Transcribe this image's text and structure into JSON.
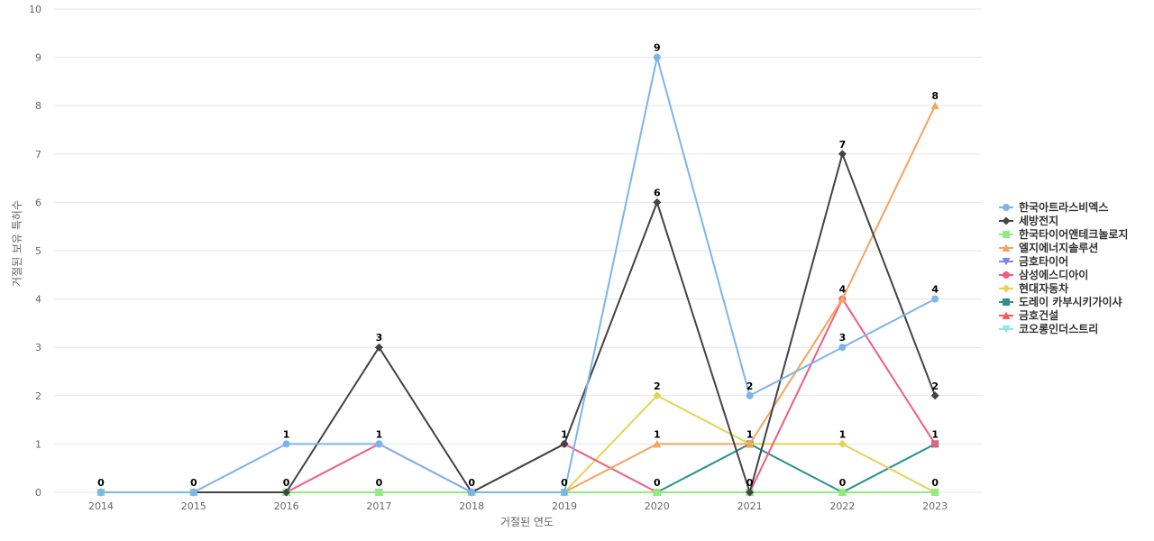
{
  "chart_data": {
    "type": "line",
    "xlabel": "거절된 연도",
    "ylabel": "거절된 보유 특허수",
    "categories": [
      "2014",
      "2015",
      "2016",
      "2017",
      "2018",
      "2019",
      "2020",
      "2021",
      "2022",
      "2023"
    ],
    "ylim": [
      0,
      10
    ],
    "yticks": [
      0,
      1,
      2,
      3,
      4,
      5,
      6,
      7,
      8,
      9,
      10
    ],
    "grid": true,
    "legend_position": "right",
    "series": [
      {
        "name": "한국아트라스비엑스",
        "color": "#7cb5ec",
        "marker": "circle",
        "values": [
          0,
          0,
          1,
          1,
          0,
          0,
          9,
          2,
          3,
          4
        ]
      },
      {
        "name": "세방전지",
        "color": "#434348",
        "marker": "diamond",
        "values": [
          0,
          0,
          0,
          3,
          0,
          1,
          6,
          0,
          7,
          2
        ]
      },
      {
        "name": "한국타이어앤테크놀로지",
        "color": "#90ed7d",
        "marker": "square",
        "values": [
          0,
          0,
          0,
          0,
          0,
          0,
          0,
          0,
          0,
          0
        ]
      },
      {
        "name": "엘지에너지솔루션",
        "color": "#f7a35c",
        "marker": "triangle",
        "values": [
          0,
          0,
          0,
          0,
          0,
          0,
          1,
          1,
          4,
          8
        ]
      },
      {
        "name": "금호타이어",
        "color": "#8085e9",
        "marker": "triangle-down",
        "values": [
          0,
          0,
          0,
          0,
          0,
          0,
          0,
          0,
          0,
          0
        ]
      },
      {
        "name": "삼성에스디아이",
        "color": "#f15c80",
        "marker": "circle",
        "values": [
          0,
          0,
          0,
          1,
          0,
          1,
          0,
          0,
          4,
          1
        ]
      },
      {
        "name": "현대자동차",
        "color": "#e4d354",
        "marker": "diamond",
        "values": [
          0,
          0,
          0,
          0,
          0,
          0,
          2,
          1,
          1,
          0
        ]
      },
      {
        "name": "도레이 카부시키가이샤",
        "color": "#2b908f",
        "marker": "square",
        "values": [
          0,
          0,
          0,
          0,
          0,
          0,
          0,
          1,
          0,
          1
        ]
      },
      {
        "name": "금호건설",
        "color": "#f45b5b",
        "marker": "triangle",
        "values": [
          0,
          0,
          0,
          0,
          0,
          0,
          0,
          0,
          0,
          0
        ]
      },
      {
        "name": "코오롱인더스트리",
        "color": "#91e8e1",
        "marker": "triangle-down",
        "values": [
          0,
          0,
          0,
          0,
          0,
          0,
          0,
          0,
          0,
          1
        ]
      }
    ],
    "data_labels": [
      {
        "x": "2014",
        "text": "0",
        "anchor": 0
      },
      {
        "x": "2015",
        "text": "0",
        "anchor": 0
      },
      {
        "x": "2016",
        "text": "1",
        "anchor": 1
      },
      {
        "x": "2016",
        "text": "0",
        "anchor": 0
      },
      {
        "x": "2017",
        "text": "3",
        "anchor": 3
      },
      {
        "x": "2017",
        "text": "1",
        "anchor": 1
      },
      {
        "x": "2017",
        "text": "0",
        "anchor": 0
      },
      {
        "x": "2018",
        "text": "0",
        "anchor": 0
      },
      {
        "x": "2019",
        "text": "1",
        "anchor": 1
      },
      {
        "x": "2019",
        "text": "0",
        "anchor": 0
      },
      {
        "x": "2020",
        "text": "9",
        "anchor": 9
      },
      {
        "x": "2020",
        "text": "6",
        "anchor": 6
      },
      {
        "x": "2020",
        "text": "2",
        "anchor": 2
      },
      {
        "x": "2020",
        "text": "1",
        "anchor": 1
      },
      {
        "x": "2020",
        "text": "0",
        "anchor": 0
      },
      {
        "x": "2021",
        "text": "2",
        "anchor": 2
      },
      {
        "x": "2021",
        "text": "1",
        "anchor": 1
      },
      {
        "x": "2021",
        "text": "0",
        "anchor": 0
      },
      {
        "x": "2022",
        "text": "7",
        "anchor": 7
      },
      {
        "x": "2022",
        "text": "4",
        "anchor": 4
      },
      {
        "x": "2022",
        "text": "3",
        "anchor": 3
      },
      {
        "x": "2022",
        "text": "1",
        "anchor": 1
      },
      {
        "x": "2022",
        "text": "0",
        "anchor": 0
      },
      {
        "x": "2023",
        "text": "8",
        "anchor": 8
      },
      {
        "x": "2023",
        "text": "4",
        "anchor": 4
      },
      {
        "x": "2023",
        "text": "2",
        "anchor": 2
      },
      {
        "x": "2023",
        "text": "1",
        "anchor": 1
      },
      {
        "x": "2023",
        "text": "0",
        "anchor": 0
      }
    ]
  }
}
